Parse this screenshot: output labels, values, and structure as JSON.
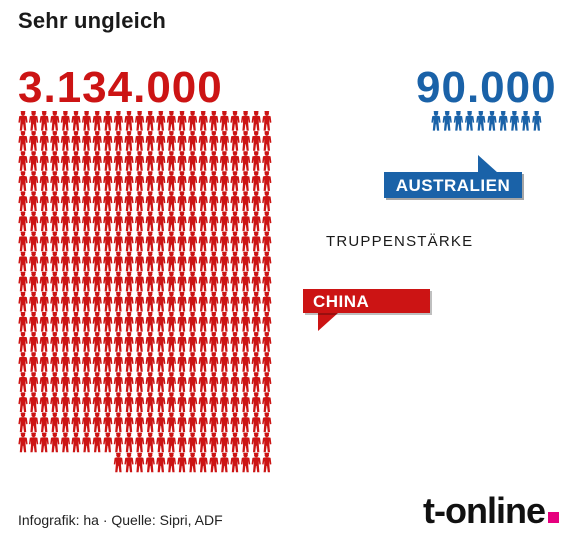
{
  "title": "Sehr ungleich",
  "metric_label": "TRUPPENSTÄRKE",
  "colors": {
    "china": "#cc1414",
    "australia": "#1a62a8",
    "brand_dot": "#e6007e"
  },
  "chart_data": {
    "type": "pictogram",
    "series": [
      {
        "name": "CHINA",
        "value_label": "3.134.000",
        "value": 3134000,
        "color": "#cc1414"
      },
      {
        "name": "AUSTRALIEN",
        "value_label": "90.000",
        "value": 90000,
        "color": "#1a62a8"
      }
    ]
  },
  "footer": {
    "credits": "Infografik: ha  ·  Quelle: Sipri, ADF",
    "brand": "t-online"
  }
}
